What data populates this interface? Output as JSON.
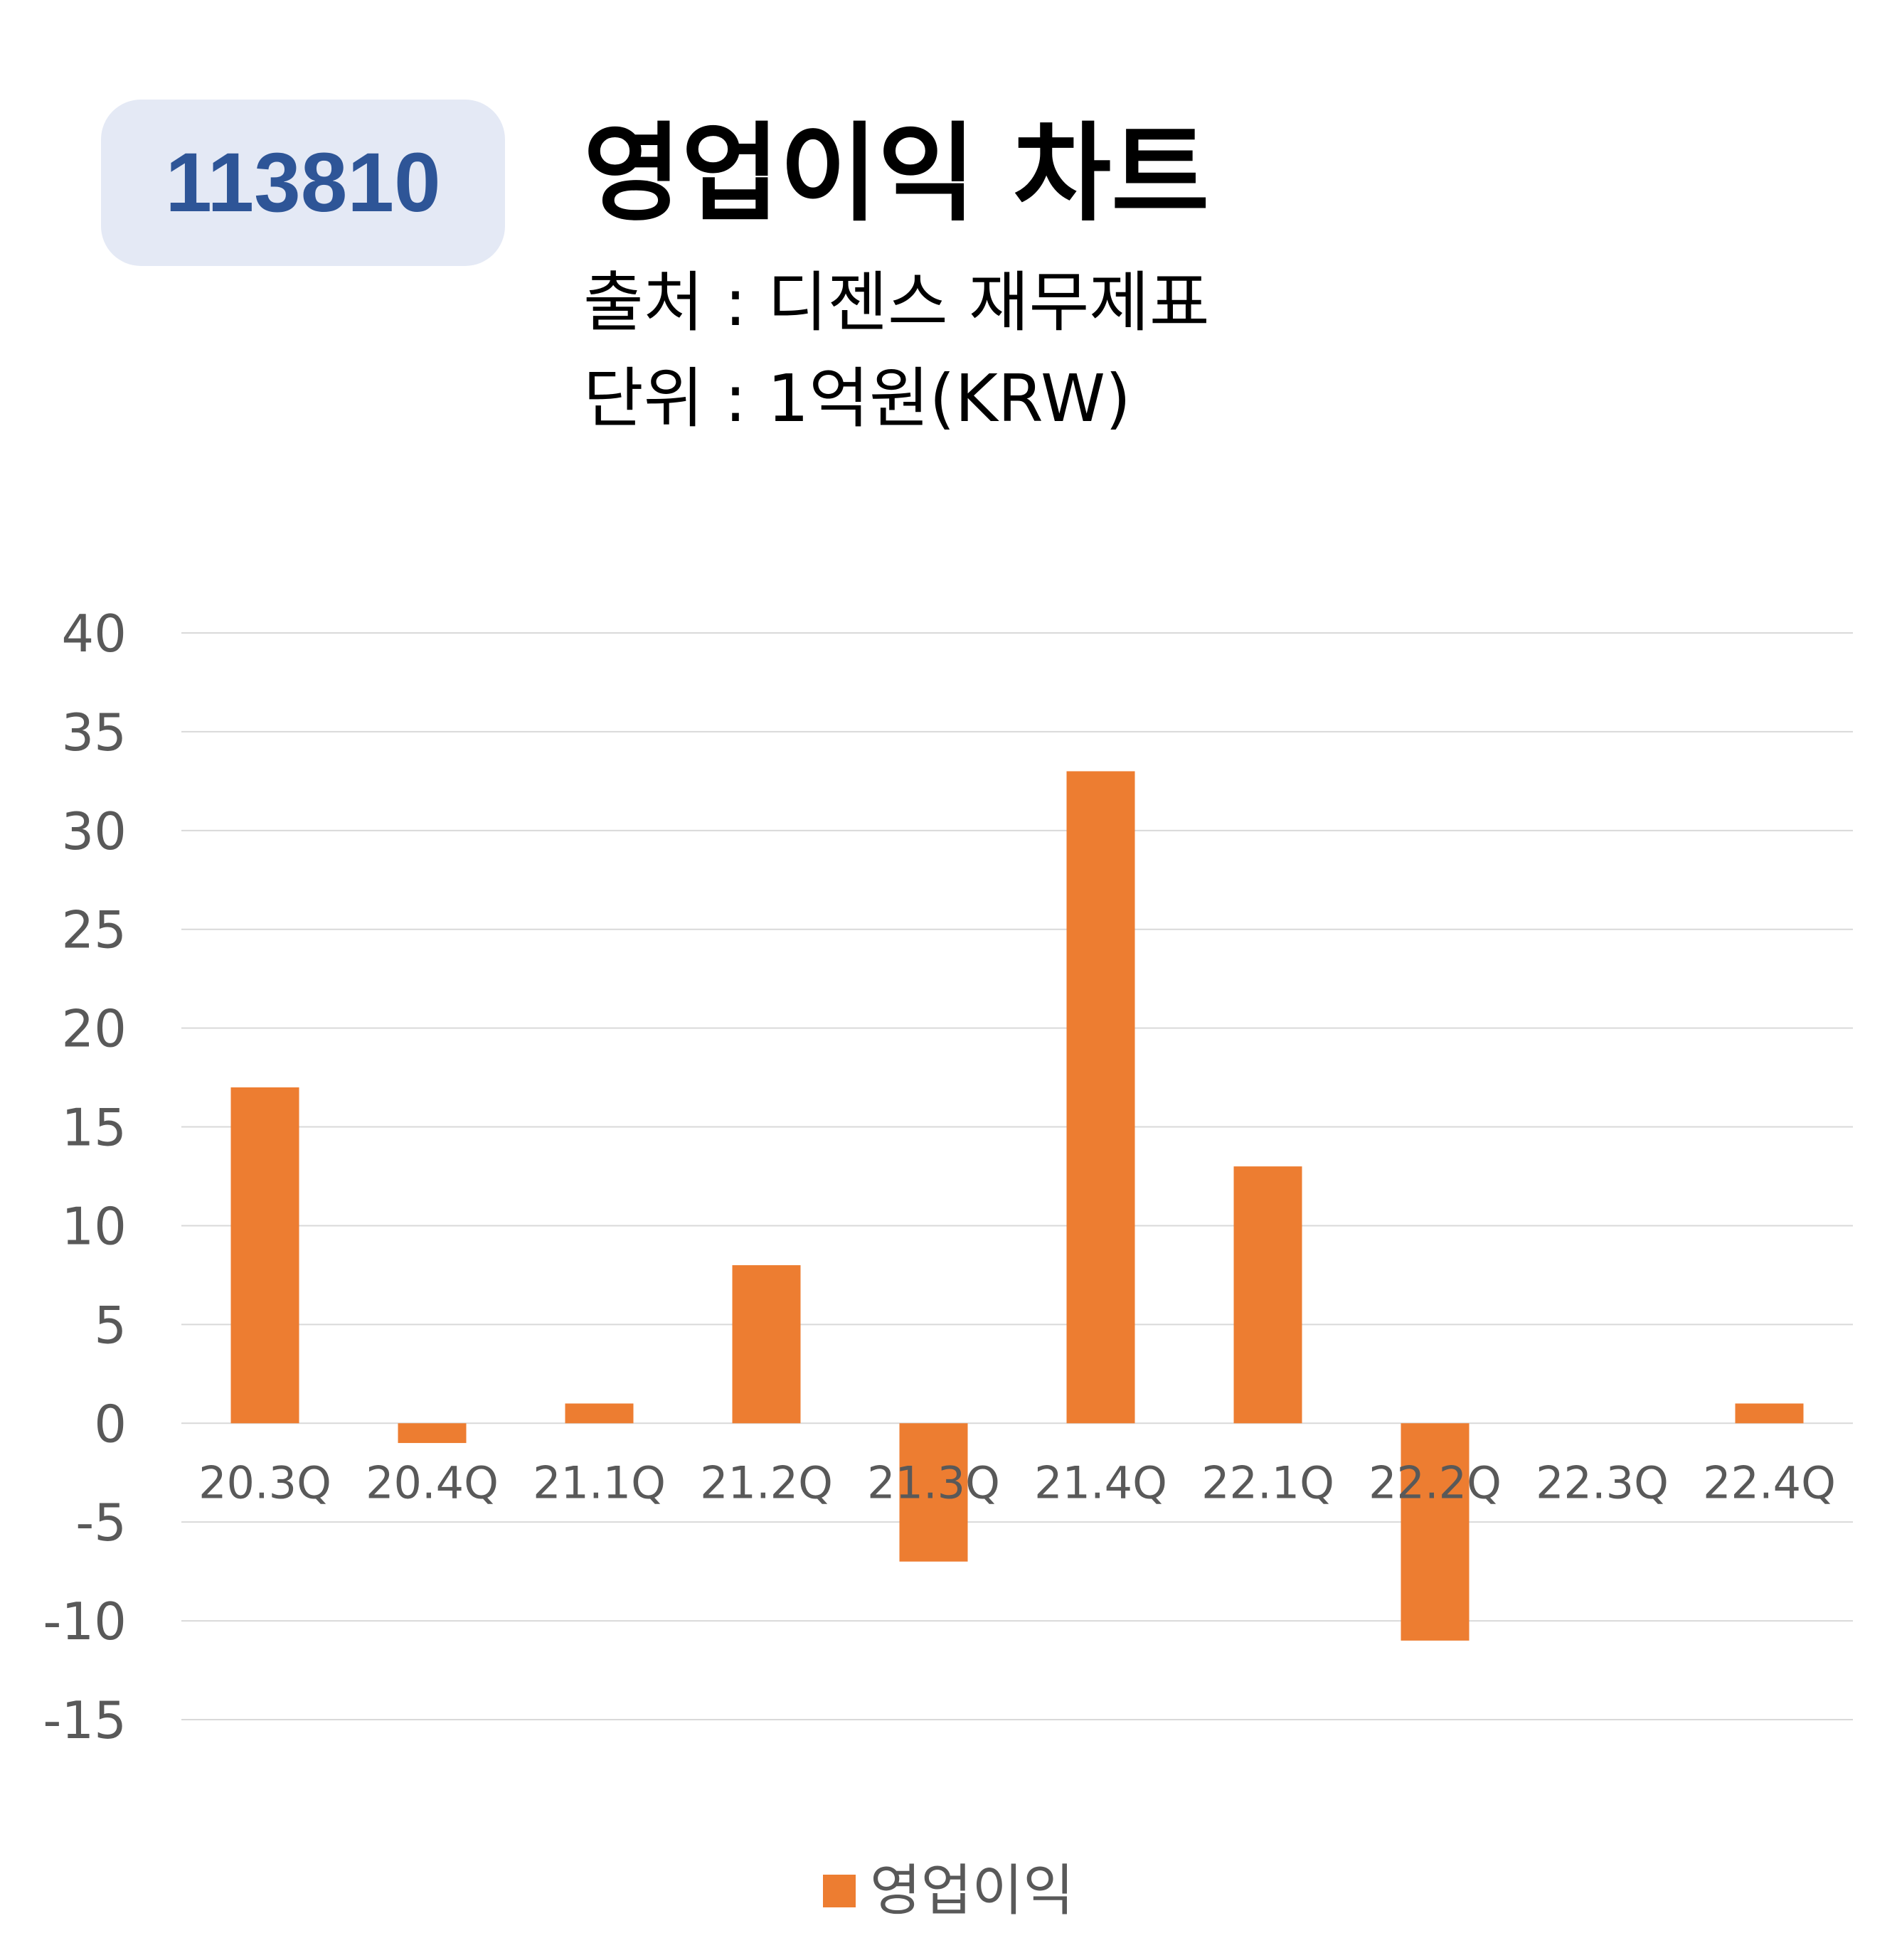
{
  "header": {
    "code": "113810",
    "title": "영업이익 차트",
    "source": "출처 : 디젠스 재무제표",
    "unit": "단위 : 1억원(KRW)"
  },
  "colors": {
    "bar": "#ed7d31",
    "badge_bg": "#e4e9f5",
    "badge_text": "#2e5597",
    "grid": "#d9d9d9",
    "axis_text": "#595959"
  },
  "chart_data": {
    "type": "bar",
    "categories": [
      "20.3Q",
      "20.4Q",
      "21.1Q",
      "21.2Q",
      "21.3Q",
      "21.4Q",
      "22.1Q",
      "22.2Q",
      "22.3Q",
      "22.4Q"
    ],
    "series": [
      {
        "name": "영업이익",
        "values": [
          17,
          -1,
          1,
          8,
          -7,
          33,
          13,
          -11,
          0,
          1
        ]
      }
    ],
    "ylim": [
      -15,
      40
    ],
    "yticks": [
      40,
      35,
      30,
      25,
      20,
      15,
      10,
      5,
      0,
      -5,
      -10,
      -15
    ],
    "grid": true,
    "legend": "bottom"
  }
}
